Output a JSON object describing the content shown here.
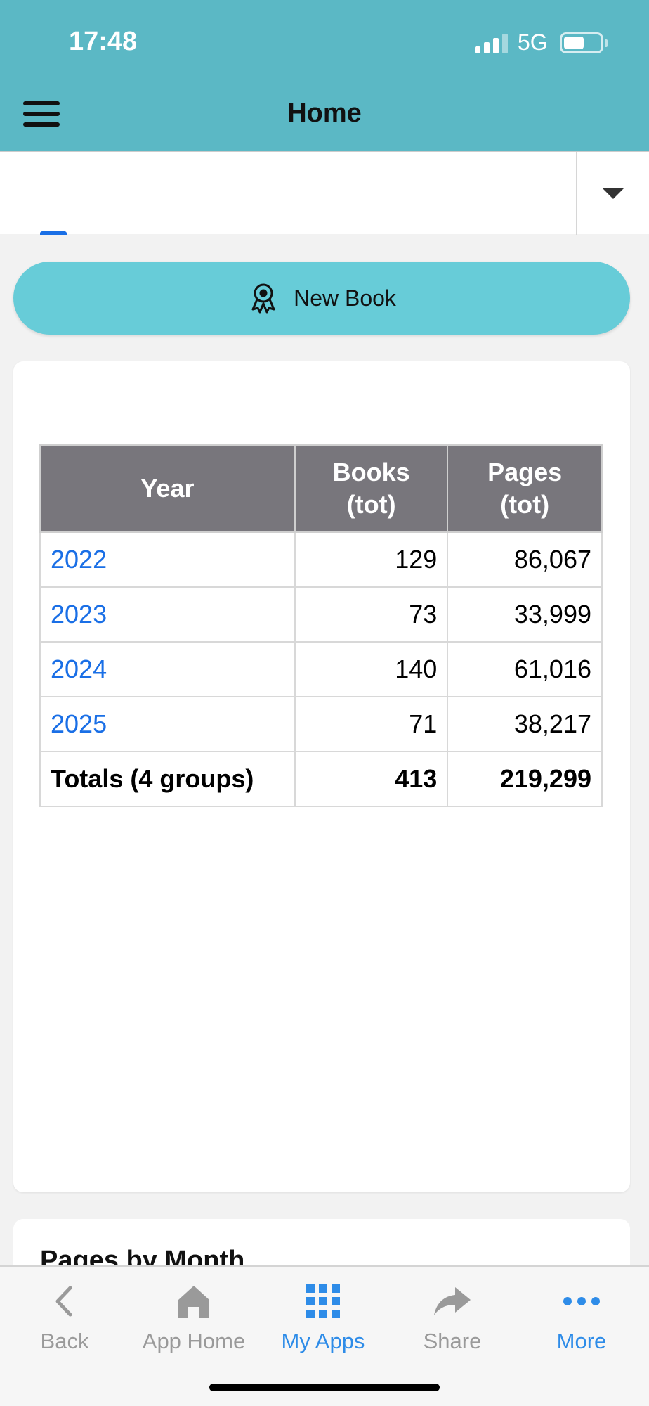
{
  "status": {
    "time": "17:48",
    "network": "5G"
  },
  "header": {
    "title": "Home"
  },
  "actions": {
    "new_book_label": "New Book"
  },
  "table": {
    "headers": {
      "year": "Year",
      "books_line1": "Books",
      "books_line2": "(tot)",
      "pages_line1": "Pages",
      "pages_line2": "(tot)"
    },
    "rows": [
      {
        "year": "2022",
        "books": "129",
        "pages": "86,067"
      },
      {
        "year": "2023",
        "books": "73",
        "pages": "33,999"
      },
      {
        "year": "2024",
        "books": "140",
        "pages": "61,016"
      },
      {
        "year": "2025",
        "books": "71",
        "pages": "38,217"
      }
    ],
    "totals": {
      "label": "Totals (4 groups)",
      "books": "413",
      "pages": "219,299"
    }
  },
  "next_card": {
    "title": "Pages by Month"
  },
  "nav": {
    "items": [
      {
        "label": "Back",
        "icon": "chevron-left-icon"
      },
      {
        "label": "App Home",
        "icon": "home-icon"
      },
      {
        "label": "My Apps",
        "icon": "grid-icon"
      },
      {
        "label": "Share",
        "icon": "share-icon"
      },
      {
        "label": "More",
        "icon": "more-icon"
      }
    ]
  },
  "colors": {
    "header": "#5bb8c5",
    "button": "#67ccd8",
    "link": "#1a6fe6",
    "table_header": "#78767c",
    "nav_active": "#2e8ce8"
  }
}
